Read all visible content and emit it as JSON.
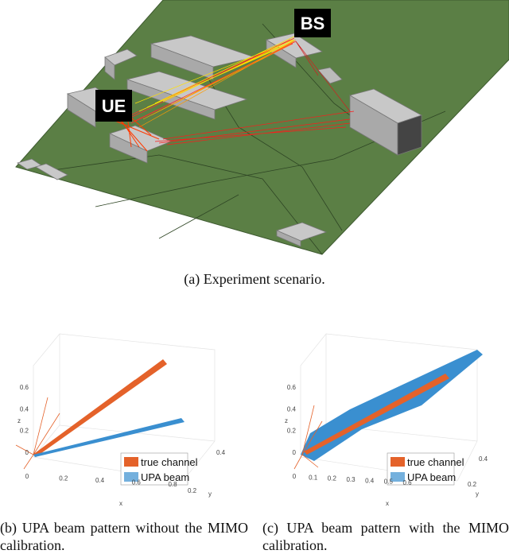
{
  "scenario": {
    "labels": {
      "bs": "BS",
      "ue": "UE"
    },
    "caption": "(a) Experiment scenario."
  },
  "plots": [
    {
      "caption": "(b) UPA beam pattern without the MIMO calibration.",
      "legend": [
        "true channel",
        "UPA beam"
      ],
      "axis_labels": {
        "x": "x",
        "y": "y",
        "z": "z"
      },
      "zticks": [
        0,
        0.2,
        0.4,
        0.6
      ],
      "xticks": [
        0,
        0.2,
        0.4,
        0.6,
        0.8
      ],
      "yticks": [
        0.2,
        0.4
      ]
    },
    {
      "caption": "(c) UPA beam pattern with the MIMO calibration.",
      "legend": [
        "true channel",
        "UPA beam"
      ],
      "axis_labels": {
        "x": "x",
        "y": "y",
        "z": "z"
      },
      "zticks": [
        0,
        0.2,
        0.4,
        0.6
      ],
      "xticks": [
        0,
        0.1,
        0.2,
        0.3,
        0.4,
        0.5,
        0.6
      ],
      "yticks": [
        0.2,
        0.4
      ]
    }
  ]
}
